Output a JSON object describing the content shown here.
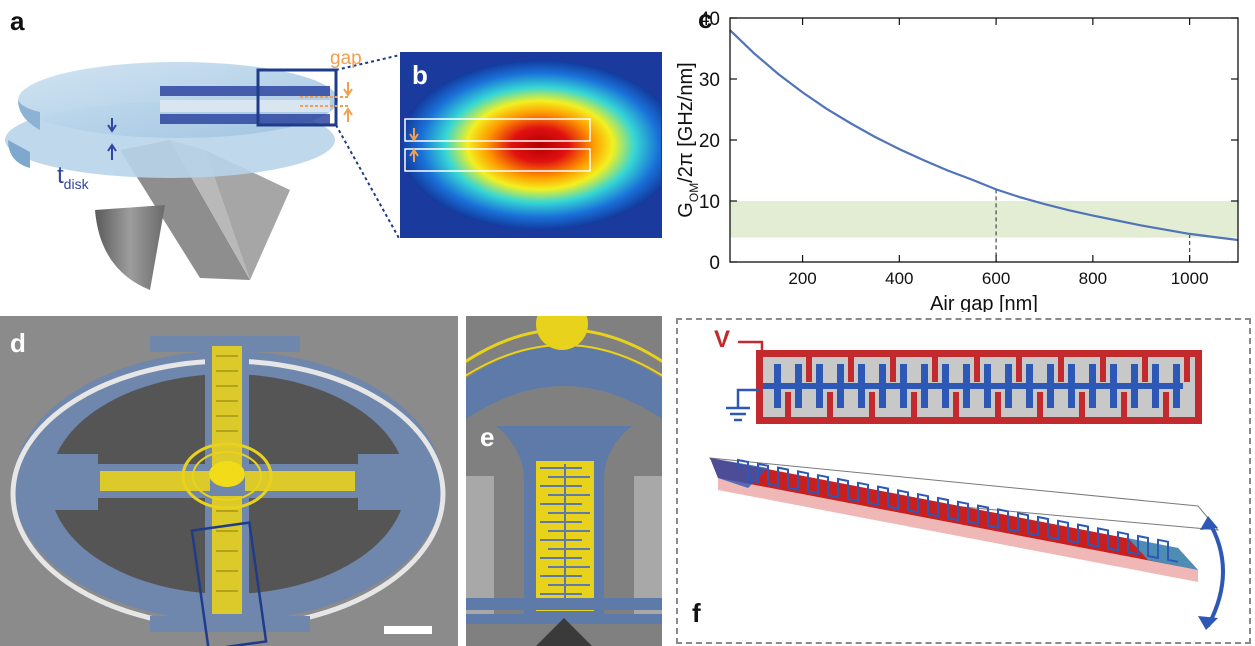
{
  "panels": {
    "a": {
      "label": "a",
      "gap_label": "gap",
      "thickness_label": "t",
      "thickness_sub": "disk"
    },
    "b": {
      "label": "b"
    },
    "c": {
      "label": "c"
    },
    "d": {
      "label": "d"
    },
    "e": {
      "label": "e"
    },
    "f": {
      "label": "f",
      "voltage_label": "V"
    }
  },
  "colors": {
    "accent_orange": "#f0a050",
    "disk_blue": "#2f47a0",
    "curve_blue": "#4f74b8",
    "band_green": "#e3edd4",
    "gold": "#e8d21c",
    "sem_blue": "#6f86ad",
    "electrode_red": "#c22a2e",
    "electrode_blue": "#2e58b5"
  },
  "chart_data": {
    "type": "line",
    "xlabel": "Air gap  [nm]",
    "ylabel_main": "G",
    "ylabel_sub": "OM",
    "ylabel_rest": "/2π [GHz/nm]",
    "xlim": [
      50,
      1100
    ],
    "ylim": [
      0,
      40
    ],
    "x_ticks": [
      200,
      400,
      600,
      800,
      1000
    ],
    "x_tick_labels": [
      "200",
      "400",
      "600",
      "800",
      "1000"
    ],
    "y_ticks": [
      0,
      10,
      20,
      30,
      40
    ],
    "y_tick_labels": [
      "0",
      "10",
      "20",
      "30",
      "40"
    ],
    "grid": false,
    "series": [
      {
        "x": [
          50,
          100,
          150,
          200,
          250,
          300,
          350,
          400,
          450,
          500,
          550,
          600,
          650,
          700,
          750,
          800,
          850,
          900,
          950,
          1000,
          1050,
          1100
        ],
        "y": [
          38.0,
          34.2,
          30.8,
          27.8,
          25.1,
          22.7,
          20.5,
          18.5,
          16.7,
          15.0,
          13.5,
          11.9,
          10.6,
          9.5,
          8.5,
          7.6,
          6.8,
          6.0,
          5.3,
          4.6,
          4.1,
          3.6
        ]
      }
    ],
    "band": {
      "y_min": 4,
      "y_max": 10
    },
    "reference_lines": [
      600,
      1000
    ]
  }
}
